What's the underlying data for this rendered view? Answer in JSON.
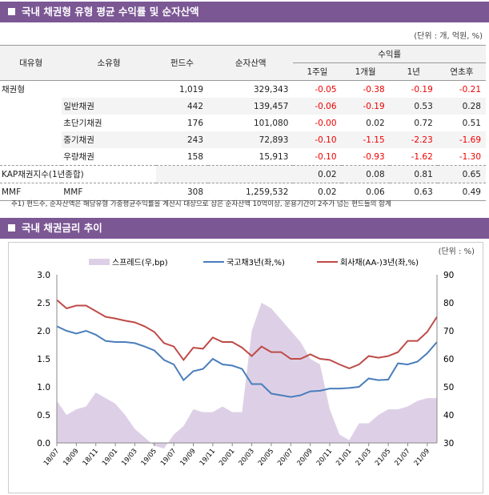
{
  "section1": {
    "title": "국내 채권형 유형 평균 수익률 및 순자산액",
    "unit": "(단위 : 개, 억원, %)",
    "headers": {
      "major": "대유형",
      "minor": "소유형",
      "funds": "펀드수",
      "nav": "순자산액",
      "returns": "수익률",
      "w1": "1주일",
      "m1": "1개월",
      "y1": "1년",
      "ytd": "연초후"
    },
    "rows": [
      {
        "major": "채권형",
        "minor": "",
        "funds": "1,019",
        "nav": "329,343",
        "w1": "-0.05",
        "m1": "-0.38",
        "y1": "-0.19",
        "ytd": "-0.21"
      },
      {
        "major": "",
        "minor": "일반채권",
        "funds": "442",
        "nav": "139,457",
        "w1": "-0.06",
        "m1": "-0.19",
        "y1": "0.53",
        "ytd": "0.28"
      },
      {
        "major": "",
        "minor": "초단기채권",
        "funds": "176",
        "nav": "101,080",
        "w1": "-0.00",
        "m1": "0.02",
        "y1": "0.72",
        "ytd": "0.51"
      },
      {
        "major": "",
        "minor": "중기채권",
        "funds": "243",
        "nav": "72,893",
        "w1": "-0.10",
        "m1": "-1.15",
        "y1": "-2.23",
        "ytd": "-1.69"
      },
      {
        "major": "",
        "minor": "우량채권",
        "funds": "158",
        "nav": "15,913",
        "w1": "-0.10",
        "m1": "-0.93",
        "y1": "-1.62",
        "ytd": "-1.30"
      },
      {
        "major": "KAP채권지수(1년종합)",
        "minor": "",
        "funds": "",
        "nav": "",
        "w1": "0.02",
        "m1": "0.08",
        "y1": "0.81",
        "ytd": "0.65"
      },
      {
        "major": "MMF",
        "minor": "MMF",
        "funds": "308",
        "nav": "1,259,532",
        "w1": "0.02",
        "m1": "0.06",
        "y1": "0.63",
        "ytd": "0.49"
      }
    ],
    "note": "주1) 펀드수, 순자산액은 해당유형 가중평균수익률을 계산시 대상으로 삼은 순자산액 10억이상, 운용기간이 2주가 넘는 펀드들의 합계"
  },
  "section2": {
    "title": "국내 채권금리 추이",
    "unit": "(단위 : %)"
  },
  "chart_data": {
    "type": "line",
    "left_ylim": [
      0,
      3
    ],
    "right_ylim": [
      30,
      90
    ],
    "left_ticks": [
      "3.0",
      "2.5",
      "2.0",
      "1.5",
      "1.0",
      "0.5",
      "0.0"
    ],
    "right_ticks": [
      "90",
      "80",
      "70",
      "60",
      "50",
      "40",
      "30"
    ],
    "x_ticks": [
      "18/07",
      "18/09",
      "18/11",
      "19/01",
      "19/03",
      "19/05",
      "19/07",
      "19/09",
      "19/11",
      "20/01",
      "20/03",
      "20/05",
      "20/07",
      "20/09",
      "20/11",
      "21/01",
      "21/03",
      "21/05",
      "21/07",
      "21/09"
    ],
    "x": [
      "18/07",
      "18/08",
      "18/09",
      "18/10",
      "18/11",
      "18/12",
      "19/01",
      "19/02",
      "19/03",
      "19/04",
      "19/05",
      "19/06",
      "19/07",
      "19/08",
      "19/09",
      "19/10",
      "19/11",
      "19/12",
      "20/01",
      "20/02",
      "20/03",
      "20/04",
      "20/05",
      "20/06",
      "20/07",
      "20/08",
      "20/09",
      "20/10",
      "20/11",
      "20/12",
      "21/01",
      "21/02",
      "21/03",
      "21/04",
      "21/05",
      "21/06",
      "21/07",
      "21/08",
      "21/09",
      "21/10"
    ],
    "series": [
      {
        "name": "스프레드(우,bp)",
        "type": "area",
        "axis": "right",
        "color": "#ddd0e6",
        "values": [
          45,
          40,
          42,
          43,
          48,
          46,
          44,
          40,
          35,
          32,
          29,
          28,
          33,
          36,
          42,
          41,
          41,
          43,
          41,
          41,
          70,
          80,
          78,
          74,
          70,
          66,
          60,
          58,
          42,
          33,
          31,
          37,
          37,
          40,
          42,
          42,
          43,
          45,
          46,
          46
        ]
      },
      {
        "name": "국고채3년(좌,%)",
        "type": "line",
        "axis": "left",
        "color": "#4a7ebb",
        "values": [
          2.08,
          2.0,
          1.95,
          2.0,
          1.93,
          1.82,
          1.8,
          1.8,
          1.78,
          1.72,
          1.65,
          1.48,
          1.4,
          1.12,
          1.28,
          1.32,
          1.5,
          1.4,
          1.38,
          1.32,
          1.05,
          1.05,
          0.88,
          0.85,
          0.82,
          0.85,
          0.92,
          0.93,
          0.97,
          0.97,
          0.98,
          1.0,
          1.15,
          1.12,
          1.13,
          1.42,
          1.4,
          1.45,
          1.6,
          1.8
        ]
      },
      {
        "name": "회사채(AA-)3년(좌,%)",
        "type": "line",
        "axis": "left",
        "color": "#be4b48",
        "values": [
          2.55,
          2.4,
          2.45,
          2.45,
          2.35,
          2.25,
          2.22,
          2.18,
          2.15,
          2.08,
          1.98,
          1.78,
          1.72,
          1.48,
          1.7,
          1.68,
          1.88,
          1.8,
          1.8,
          1.7,
          1.55,
          1.72,
          1.62,
          1.62,
          1.5,
          1.5,
          1.58,
          1.5,
          1.48,
          1.4,
          1.33,
          1.4,
          1.55,
          1.52,
          1.55,
          1.62,
          1.82,
          1.82,
          1.98,
          2.25
        ]
      }
    ]
  }
}
